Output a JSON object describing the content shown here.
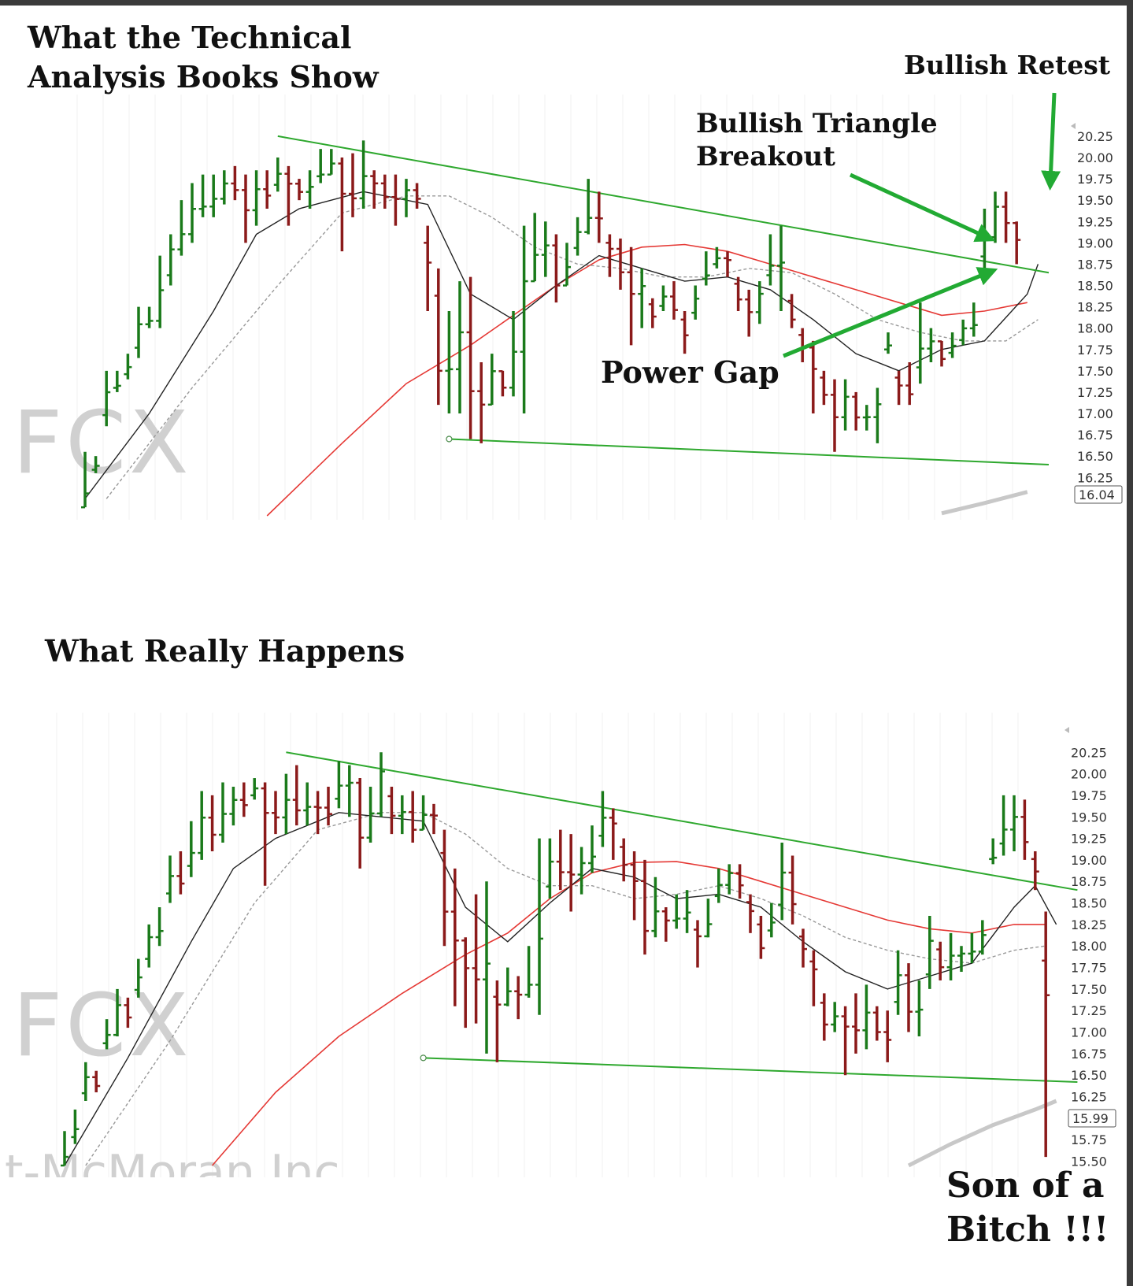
{
  "headings": {
    "top_line1": "What the Technical",
    "top_line2": "Analysis Books Show",
    "bottom": "What Really Happens"
  },
  "annotations": {
    "bullish_retest": "Bullish Retest",
    "triangle_line1": "Bullish Triangle",
    "triangle_line2": "Breakout",
    "power_gap": "Power Gap",
    "son_line1": "Son of a",
    "son_line2": "Bitch !!!"
  },
  "watermarks": {
    "ticker": "FCX",
    "company": "t-McMoran Inc"
  },
  "colors": {
    "up_bar": "#1a7a1a",
    "down_bar": "#8b1a1a",
    "trendline": "#2ea82e",
    "sma_fast": "#222222",
    "sma_mid": "#999999",
    "sma_slow": "#e53935",
    "sma_long": "#c8c8c8",
    "arrow": "#22aa33"
  },
  "chart_data": [
    {
      "type": "ohlc",
      "ticker": "FCX",
      "yticks": [
        "16.25",
        "16.50",
        "16.75",
        "17.00",
        "17.25",
        "17.50",
        "17.75",
        "18.00",
        "18.25",
        "18.50",
        "18.75",
        "19.00",
        "19.25",
        "19.50",
        "19.75",
        "20.00",
        "20.25"
      ],
      "ylim": [
        15.8,
        20.6
      ],
      "last_price": "16.04",
      "bars": [
        [
          15.9,
          16.55
        ],
        [
          16.3,
          16.5
        ],
        [
          16.85,
          17.5
        ],
        [
          17.25,
          17.5
        ],
        [
          17.4,
          17.7
        ],
        [
          17.65,
          18.25
        ],
        [
          18.0,
          18.25
        ],
        [
          18.0,
          18.85
        ],
        [
          18.5,
          19.1
        ],
        [
          18.85,
          19.5
        ],
        [
          19.0,
          19.7
        ],
        [
          19.3,
          19.8
        ],
        [
          19.3,
          19.8
        ],
        [
          19.45,
          19.85
        ],
        [
          19.5,
          19.9
        ],
        [
          19.0,
          19.8
        ],
        [
          19.2,
          19.85
        ],
        [
          19.4,
          19.85
        ],
        [
          19.6,
          20.0
        ],
        [
          19.2,
          19.9
        ],
        [
          19.5,
          19.75
        ],
        [
          19.4,
          19.85
        ],
        [
          19.7,
          20.1
        ],
        [
          19.8,
          20.1
        ],
        [
          18.9,
          20.0
        ],
        [
          19.3,
          20.05
        ],
        [
          19.4,
          20.2
        ],
        [
          19.4,
          19.85
        ],
        [
          19.4,
          19.8
        ],
        [
          19.2,
          19.8
        ],
        [
          19.3,
          19.75
        ],
        [
          19.4,
          19.7
        ],
        [
          18.2,
          19.2
        ],
        [
          17.1,
          18.7
        ],
        [
          17.0,
          18.2
        ],
        [
          17.0,
          18.55
        ],
        [
          16.7,
          18.6
        ],
        [
          16.65,
          17.6
        ],
        [
          17.1,
          17.7
        ],
        [
          17.2,
          17.5
        ],
        [
          17.2,
          18.2
        ],
        [
          17.0,
          19.2
        ],
        [
          18.55,
          19.35
        ],
        [
          18.6,
          19.25
        ],
        [
          18.3,
          19.1
        ],
        [
          18.5,
          19.0
        ],
        [
          18.85,
          19.3
        ],
        [
          19.1,
          19.75
        ],
        [
          19.0,
          19.6
        ],
        [
          18.6,
          19.1
        ],
        [
          18.45,
          19.05
        ],
        [
          17.8,
          18.95
        ],
        [
          18.0,
          18.7
        ],
        [
          18.0,
          18.35
        ],
        [
          18.2,
          18.5
        ],
        [
          18.1,
          18.55
        ],
        [
          17.7,
          18.2
        ],
        [
          18.1,
          18.5
        ],
        [
          18.5,
          18.9
        ],
        [
          18.7,
          18.95
        ],
        [
          18.6,
          18.9
        ],
        [
          18.2,
          18.6
        ],
        [
          17.9,
          18.45
        ],
        [
          18.05,
          18.55
        ],
        [
          18.5,
          19.1
        ],
        [
          18.2,
          19.2
        ],
        [
          18.0,
          18.4
        ],
        [
          17.6,
          18.0
        ],
        [
          17.0,
          17.85
        ],
        [
          17.1,
          17.5
        ],
        [
          16.55,
          17.4
        ],
        [
          16.8,
          17.4
        ],
        [
          16.8,
          17.25
        ],
        [
          16.8,
          17.1
        ],
        [
          16.65,
          17.3
        ],
        [
          17.7,
          17.95
        ],
        [
          17.1,
          17.5
        ],
        [
          17.1,
          17.6
        ],
        [
          17.35,
          18.3
        ],
        [
          17.6,
          18.0
        ],
        [
          17.55,
          17.85
        ],
        [
          17.65,
          17.95
        ],
        [
          17.8,
          18.1
        ],
        [
          17.9,
          18.3
        ],
        [
          18.7,
          19.4
        ],
        [
          19.0,
          19.6
        ],
        [
          19.0,
          19.6
        ],
        [
          18.75,
          19.25
        ]
      ],
      "sma_fast": [
        [
          0,
          16.0
        ],
        [
          6,
          17.0
        ],
        [
          12,
          18.2
        ],
        [
          16,
          19.1
        ],
        [
          20,
          19.4
        ],
        [
          26,
          19.6
        ],
        [
          32,
          19.45
        ],
        [
          36,
          18.4
        ],
        [
          40,
          18.1
        ],
        [
          44,
          18.5
        ],
        [
          48,
          18.85
        ],
        [
          52,
          18.7
        ],
        [
          56,
          18.55
        ],
        [
          60,
          18.6
        ],
        [
          64,
          18.45
        ],
        [
          68,
          18.1
        ],
        [
          72,
          17.7
        ],
        [
          76,
          17.5
        ],
        [
          80,
          17.75
        ],
        [
          84,
          17.85
        ],
        [
          88,
          18.4
        ],
        [
          89,
          18.75
        ]
      ],
      "sma_mid": [
        [
          2,
          16.0
        ],
        [
          10,
          17.3
        ],
        [
          18,
          18.5
        ],
        [
          24,
          19.35
        ],
        [
          30,
          19.55
        ],
        [
          34,
          19.55
        ],
        [
          38,
          19.3
        ],
        [
          42,
          18.95
        ],
        [
          46,
          18.75
        ],
        [
          50,
          18.7
        ],
        [
          54,
          18.6
        ],
        [
          58,
          18.6
        ],
        [
          62,
          18.7
        ],
        [
          66,
          18.65
        ],
        [
          70,
          18.4
        ],
        [
          74,
          18.1
        ],
        [
          78,
          17.95
        ],
        [
          82,
          17.85
        ],
        [
          86,
          17.85
        ],
        [
          89,
          18.1
        ]
      ],
      "sma_slow": [
        [
          17,
          15.8
        ],
        [
          24,
          16.65
        ],
        [
          30,
          17.35
        ],
        [
          36,
          17.8
        ],
        [
          40,
          18.15
        ],
        [
          44,
          18.5
        ],
        [
          48,
          18.8
        ],
        [
          52,
          18.95
        ],
        [
          56,
          18.98
        ],
        [
          60,
          18.9
        ],
        [
          64,
          18.75
        ],
        [
          68,
          18.6
        ],
        [
          72,
          18.45
        ],
        [
          76,
          18.3
        ],
        [
          80,
          18.15
        ],
        [
          84,
          18.2
        ],
        [
          88,
          18.3
        ]
      ],
      "sma_long": [
        [
          80,
          15.83
        ],
        [
          84,
          15.95
        ],
        [
          88,
          16.08
        ]
      ],
      "trendlines": [
        [
          [
            18,
            20.25
          ],
          [
            90,
            18.65
          ]
        ],
        [
          [
            34,
            16.7
          ],
          [
            90,
            16.4
          ]
        ]
      ]
    },
    {
      "type": "ohlc",
      "ticker": "FCX",
      "yticks": [
        "15.50",
        "15.75",
        "16.00",
        "16.25",
        "16.50",
        "16.75",
        "17.00",
        "17.25",
        "17.50",
        "17.75",
        "18.00",
        "18.25",
        "18.50",
        "18.75",
        "19.00",
        "19.25",
        "19.50",
        "19.75",
        "20.00",
        "20.25"
      ],
      "ylim": [
        15.45,
        20.6
      ],
      "last_price": "15.99",
      "bars": [
        [
          15.45,
          15.85
        ],
        [
          15.7,
          16.1
        ],
        [
          16.2,
          16.65
        ],
        [
          16.3,
          16.55
        ],
        [
          16.8,
          17.15
        ],
        [
          16.95,
          17.5
        ],
        [
          17.05,
          17.4
        ],
        [
          17.4,
          17.85
        ],
        [
          17.75,
          18.25
        ],
        [
          18.0,
          18.45
        ],
        [
          18.5,
          19.05
        ],
        [
          18.6,
          19.1
        ],
        [
          18.8,
          19.45
        ],
        [
          19.0,
          19.8
        ],
        [
          19.1,
          19.75
        ],
        [
          19.2,
          19.9
        ],
        [
          19.4,
          19.85
        ],
        [
          19.5,
          19.9
        ],
        [
          19.7,
          19.95
        ],
        [
          18.7,
          19.9
        ],
        [
          19.3,
          19.8
        ],
        [
          19.3,
          20.0
        ],
        [
          19.4,
          20.1
        ],
        [
          19.4,
          19.9
        ],
        [
          19.3,
          19.8
        ],
        [
          19.4,
          19.85
        ],
        [
          19.6,
          20.15
        ],
        [
          19.5,
          20.1
        ],
        [
          18.9,
          19.95
        ],
        [
          19.2,
          19.85
        ],
        [
          19.5,
          20.25
        ],
        [
          19.3,
          19.85
        ],
        [
          19.3,
          19.75
        ],
        [
          19.2,
          19.8
        ],
        [
          19.35,
          19.75
        ],
        [
          19.3,
          19.65
        ],
        [
          18.0,
          19.35
        ],
        [
          17.3,
          18.9
        ],
        [
          17.05,
          18.1
        ],
        [
          17.1,
          18.6
        ],
        [
          16.75,
          18.75
        ],
        [
          16.65,
          17.6
        ],
        [
          17.3,
          17.75
        ],
        [
          17.15,
          17.65
        ],
        [
          17.4,
          18.0
        ],
        [
          17.2,
          19.25
        ],
        [
          18.55,
          19.25
        ],
        [
          18.65,
          19.35
        ],
        [
          18.4,
          19.3
        ],
        [
          18.6,
          19.15
        ],
        [
          18.85,
          19.4
        ],
        [
          19.15,
          19.8
        ],
        [
          19.0,
          19.6
        ],
        [
          18.75,
          19.25
        ],
        [
          18.3,
          19.1
        ],
        [
          17.9,
          19.0
        ],
        [
          18.1,
          18.8
        ],
        [
          18.05,
          18.45
        ],
        [
          18.2,
          18.6
        ],
        [
          18.15,
          18.65
        ],
        [
          17.75,
          18.3
        ],
        [
          18.1,
          18.55
        ],
        [
          18.5,
          18.9
        ],
        [
          18.6,
          18.95
        ],
        [
          18.55,
          18.95
        ],
        [
          18.15,
          18.6
        ],
        [
          17.85,
          18.35
        ],
        [
          18.1,
          18.5
        ],
        [
          18.3,
          19.2
        ],
        [
          18.25,
          19.05
        ],
        [
          17.75,
          18.2
        ],
        [
          17.3,
          17.95
        ],
        [
          16.9,
          17.45
        ],
        [
          17.0,
          17.35
        ],
        [
          16.5,
          17.3
        ],
        [
          16.75,
          17.45
        ],
        [
          16.8,
          17.55
        ],
        [
          16.9,
          17.3
        ],
        [
          16.65,
          17.25
        ],
        [
          17.2,
          17.95
        ],
        [
          17.0,
          17.8
        ],
        [
          16.95,
          17.6
        ],
        [
          17.5,
          18.35
        ],
        [
          17.6,
          18.05
        ],
        [
          17.6,
          18.15
        ],
        [
          17.7,
          18.0
        ],
        [
          17.8,
          18.15
        ],
        [
          17.9,
          18.3
        ],
        [
          18.95,
          19.25
        ],
        [
          19.05,
          19.75
        ],
        [
          19.1,
          19.75
        ],
        [
          19.0,
          19.7
        ],
        [
          18.65,
          19.1
        ],
        [
          15.55,
          18.4
        ]
      ],
      "sma_fast": [
        [
          0,
          15.45
        ],
        [
          6,
          16.7
        ],
        [
          12,
          18.05
        ],
        [
          16,
          18.9
        ],
        [
          20,
          19.25
        ],
        [
          26,
          19.55
        ],
        [
          30,
          19.5
        ],
        [
          34,
          19.45
        ],
        [
          38,
          18.45
        ],
        [
          42,
          18.05
        ],
        [
          46,
          18.5
        ],
        [
          50,
          18.9
        ],
        [
          54,
          18.8
        ],
        [
          58,
          18.55
        ],
        [
          62,
          18.6
        ],
        [
          66,
          18.45
        ],
        [
          70,
          18.05
        ],
        [
          74,
          17.7
        ],
        [
          78,
          17.5
        ],
        [
          82,
          17.65
        ],
        [
          86,
          17.8
        ],
        [
          90,
          18.45
        ],
        [
          92,
          18.7
        ],
        [
          94,
          18.25
        ]
      ],
      "sma_mid": [
        [
          2,
          15.45
        ],
        [
          10,
          16.9
        ],
        [
          18,
          18.5
        ],
        [
          24,
          19.35
        ],
        [
          30,
          19.55
        ],
        [
          34,
          19.55
        ],
        [
          38,
          19.3
        ],
        [
          42,
          18.9
        ],
        [
          46,
          18.7
        ],
        [
          50,
          18.7
        ],
        [
          54,
          18.55
        ],
        [
          58,
          18.6
        ],
        [
          62,
          18.7
        ],
        [
          66,
          18.55
        ],
        [
          70,
          18.35
        ],
        [
          74,
          18.1
        ],
        [
          78,
          17.95
        ],
        [
          82,
          17.85
        ],
        [
          86,
          17.8
        ],
        [
          90,
          17.95
        ],
        [
          93,
          18.0
        ]
      ],
      "sma_slow": [
        [
          14,
          15.45
        ],
        [
          20,
          16.3
        ],
        [
          26,
          16.95
        ],
        [
          32,
          17.45
        ],
        [
          38,
          17.9
        ],
        [
          42,
          18.15
        ],
        [
          46,
          18.55
        ],
        [
          50,
          18.85
        ],
        [
          54,
          18.97
        ],
        [
          58,
          18.98
        ],
        [
          62,
          18.9
        ],
        [
          66,
          18.75
        ],
        [
          70,
          18.6
        ],
        [
          74,
          18.45
        ],
        [
          78,
          18.3
        ],
        [
          82,
          18.2
        ],
        [
          86,
          18.15
        ],
        [
          90,
          18.25
        ],
        [
          93,
          18.25
        ]
      ],
      "sma_long": [
        [
          80,
          15.45
        ],
        [
          84,
          15.7
        ],
        [
          88,
          15.92
        ],
        [
          92,
          16.1
        ],
        [
          94,
          16.2
        ]
      ],
      "trendlines": [
        [
          [
            21,
            20.25
          ],
          [
            96,
            18.65
          ]
        ],
        [
          [
            34,
            16.7
          ],
          [
            96,
            16.42
          ]
        ]
      ]
    }
  ]
}
